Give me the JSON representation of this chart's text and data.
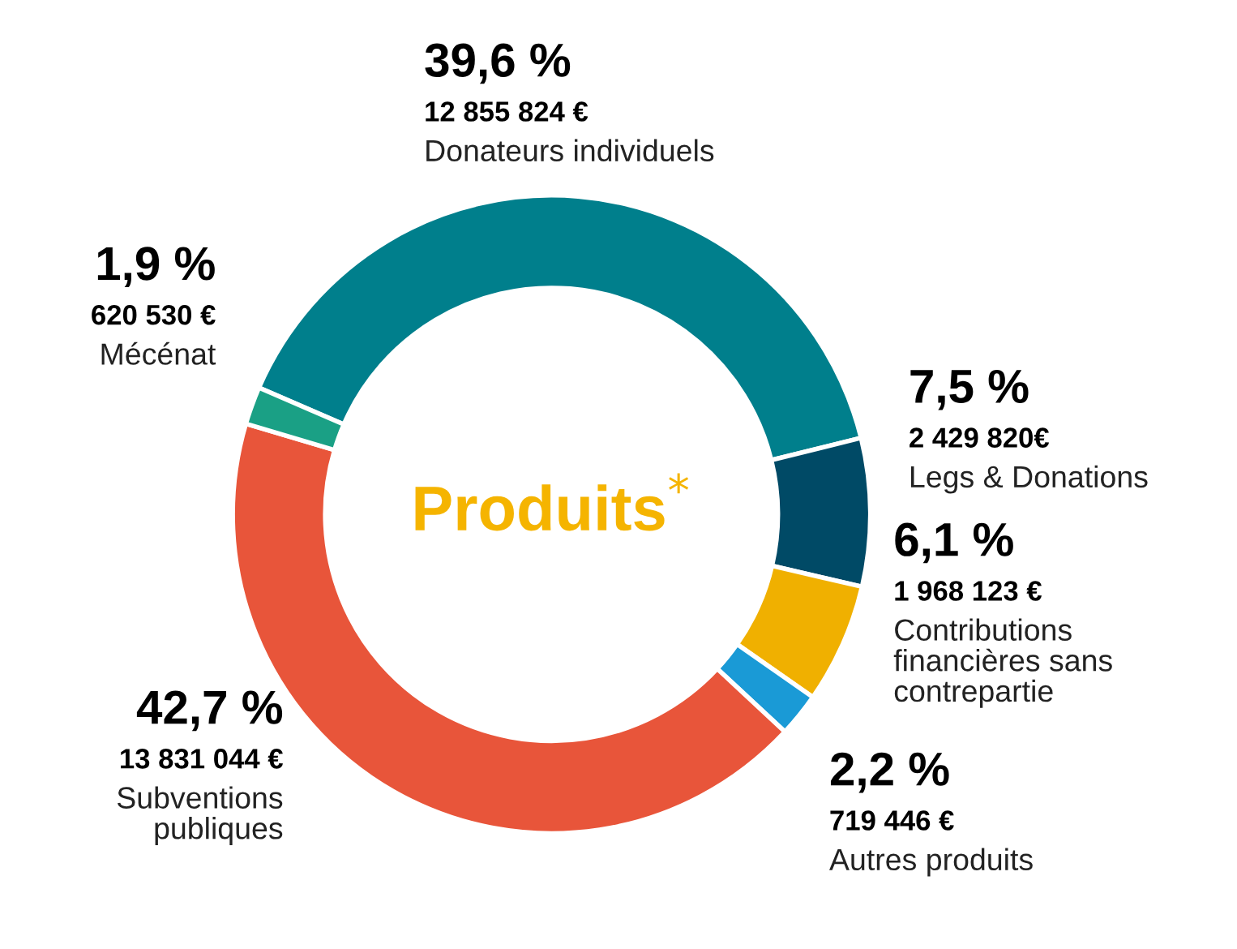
{
  "chart_data": {
    "type": "donut",
    "title": "Produits$^{*}$",
    "categories": [
      "Donateurs individuels",
      "Legs & Donations",
      "Contributions\nfinancières sans\ncontrepartie",
      "Autres produits",
      "Subventions\npubliques",
      "Mécénat"
    ],
    "values": [
      12855824,
      2429820,
      1968123,
      719446,
      13831044,
      620530
    ],
    "value_labels": [
      "39,6 %\n12 855 824 €",
      "7,5 %\n2 429 820€",
      "6,1 %\n1 968 123 €",
      "2,2 %\n719 446 €",
      "42,7 %\n13 831 044 €",
      "1,9 %\n620 530 €"
    ],
    "colors": [
      "#007f8c",
      "#004a66",
      "#f0b000",
      "#1a9ad6",
      "#e8553a",
      "#1aa085"
    ]
  }
}
